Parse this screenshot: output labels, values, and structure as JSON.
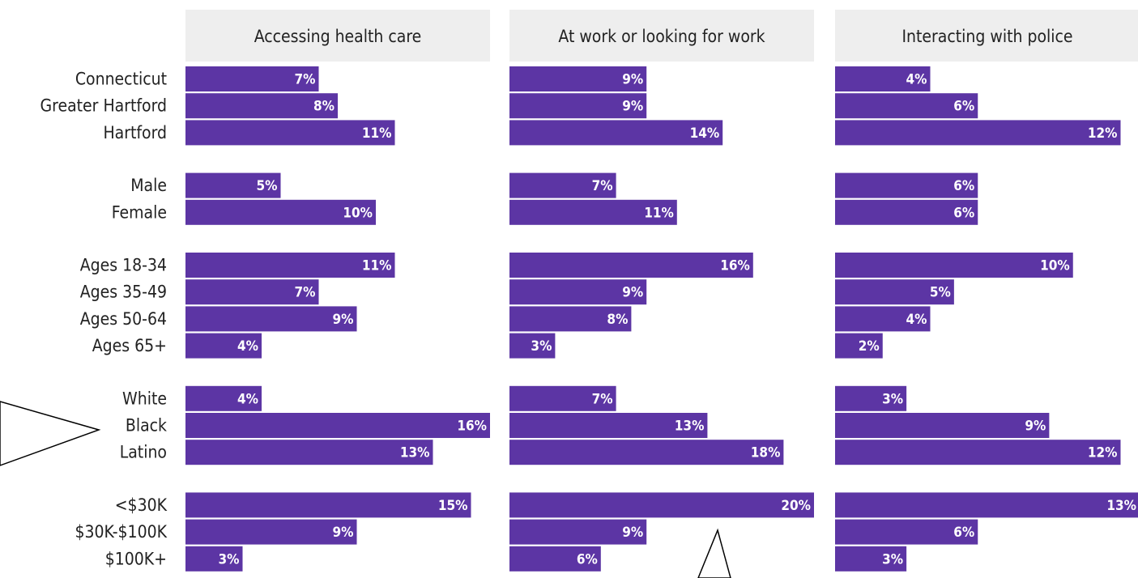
{
  "chart_data": {
    "type": "bar",
    "orientation": "horizontal",
    "title": "",
    "panels": [
      "Accessing health care",
      "At work or looking for work",
      "Interacting with police"
    ],
    "groups": [
      [
        "Connecticut",
        "Greater Hartford",
        "Hartford"
      ],
      [
        "Male",
        "Female"
      ],
      [
        "Ages 18-34",
        "Ages 35-49",
        "Ages 50-64",
        "Ages 65+"
      ],
      [
        "White",
        "Black",
        "Latino"
      ],
      [
        "<$30K",
        "$30K-$100K",
        "$100K+"
      ]
    ],
    "categories": [
      "Connecticut",
      "Greater Hartford",
      "Hartford",
      "Male",
      "Female",
      "Ages 18-34",
      "Ages 35-49",
      "Ages 50-64",
      "Ages 65+",
      "White",
      "Black",
      "Latino",
      "<$30K",
      "$30K-$100K",
      "$100K+"
    ],
    "series": [
      {
        "name": "Accessing health care",
        "values": [
          7,
          8,
          11,
          5,
          10,
          11,
          7,
          9,
          4,
          4,
          16,
          13,
          15,
          9,
          3
        ]
      },
      {
        "name": "At work or looking for work",
        "values": [
          9,
          9,
          14,
          7,
          11,
          16,
          9,
          8,
          3,
          7,
          13,
          18,
          20,
          9,
          6
        ]
      },
      {
        "name": "Interacting with police",
        "values": [
          4,
          6,
          12,
          6,
          6,
          10,
          5,
          4,
          2,
          3,
          9,
          12,
          13,
          6,
          3
        ]
      }
    ],
    "value_suffix": "%",
    "panel_max": [
      16,
      20,
      12.8
    ],
    "grid": false,
    "legend": "none",
    "colors": {
      "bar": "#5c35a4",
      "header_bg": "#eeeeee",
      "text": "#222222",
      "value_text": "#ffffff"
    }
  }
}
